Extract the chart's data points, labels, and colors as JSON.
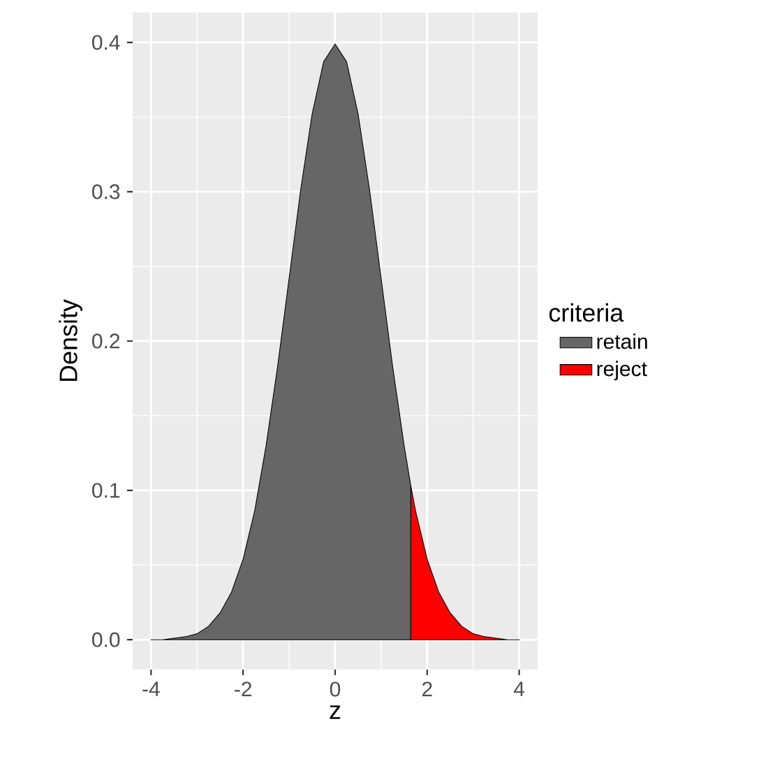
{
  "chart_data": {
    "type": "area",
    "xlabel": "z",
    "ylabel": "Density",
    "legend_title": "criteria",
    "legend": "right",
    "grid": true,
    "xlim": [
      -4.4,
      4.4
    ],
    "ylim": [
      -0.02,
      0.42
    ],
    "xticks": [
      -4,
      -2,
      0,
      2,
      4
    ],
    "yticks": [
      {
        "value": 0,
        "label": "0.0"
      },
      0.1,
      0.2,
      0.3,
      0.4
    ],
    "series": [
      {
        "name": "retain",
        "color": "#666666",
        "x": [
          -4,
          -3.75,
          -3.5,
          -3.25,
          -3,
          -2.75,
          -2.5,
          -2.25,
          -2,
          -1.75,
          -1.5,
          -1.25,
          -1,
          -0.75,
          -0.5,
          -0.25,
          0,
          0.25,
          0.5,
          0.75,
          1,
          1.25,
          1.5,
          1.645
        ],
        "values": [
          0.0,
          0.0,
          0.001,
          0.002,
          0.004,
          0.009,
          0.018,
          0.032,
          0.054,
          0.086,
          0.13,
          0.183,
          0.242,
          0.301,
          0.352,
          0.387,
          0.399,
          0.387,
          0.352,
          0.301,
          0.242,
          0.183,
          0.13,
          0.103
        ]
      },
      {
        "name": "reject",
        "color": "#ff0000",
        "x": [
          1.645,
          1.75,
          2,
          2.25,
          2.5,
          2.75,
          3,
          3.25,
          3.5,
          3.75,
          4
        ],
        "values": [
          0.103,
          0.086,
          0.054,
          0.032,
          0.018,
          0.009,
          0.004,
          0.002,
          0.001,
          0.0,
          0.0
        ]
      }
    ]
  }
}
